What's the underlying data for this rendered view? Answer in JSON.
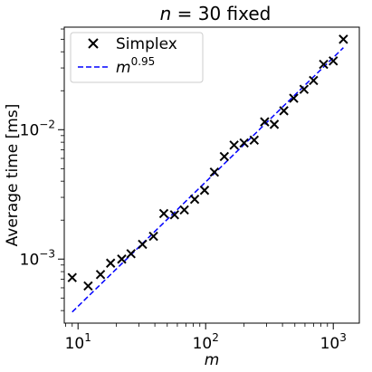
{
  "chart_data": {
    "type": "scatter",
    "title": "n = 30 fixed",
    "xlabel": "m",
    "ylabel": "Average time [ms]",
    "xscale": "log",
    "yscale": "log",
    "xlim": [
      7.8,
      1600
    ],
    "ylim": [
      0.00032,
      0.062
    ],
    "x_ticks": [
      {
        "value": 10,
        "base": "10",
        "exp": "1"
      },
      {
        "value": 100,
        "base": "10",
        "exp": "2"
      },
      {
        "value": 1000,
        "base": "10",
        "exp": "3"
      }
    ],
    "y_ticks": [
      {
        "value": 0.001,
        "base": "10",
        "exp": "−3"
      },
      {
        "value": 0.01,
        "base": "10",
        "exp": "−2"
      }
    ],
    "grid": false,
    "legend": {
      "position": "top-left",
      "entries": [
        {
          "label": "Simplex",
          "marker": "x",
          "color": "#000000"
        },
        {
          "label_base": "m",
          "label_exp": "0.95",
          "style": "dashed",
          "color": "#0000ff"
        }
      ]
    },
    "series": [
      {
        "name": "Simplex",
        "kind": "scatter",
        "marker": "x",
        "color": "#000000",
        "x": [
          9,
          12,
          15,
          18,
          22,
          26,
          32,
          39,
          47,
          57,
          68,
          82,
          98,
          117,
          140,
          167,
          200,
          240,
          290,
          345,
          410,
          490,
          590,
          700,
          840,
          1000,
          1200
        ],
        "y": [
          0.00072,
          0.00062,
          0.00076,
          0.00093,
          0.001,
          0.0011,
          0.0013,
          0.0015,
          0.00225,
          0.0022,
          0.0024,
          0.0029,
          0.0034,
          0.0047,
          0.0062,
          0.0076,
          0.0079,
          0.0083,
          0.0115,
          0.011,
          0.014,
          0.0175,
          0.0205,
          0.024,
          0.032,
          0.034,
          0.05
        ]
      },
      {
        "name": "m^0.95",
        "kind": "line",
        "style": "dashed",
        "color": "#0000ff",
        "x": [
          9,
          1200
        ],
        "y": [
          0.00039,
          0.043
        ]
      }
    ]
  }
}
